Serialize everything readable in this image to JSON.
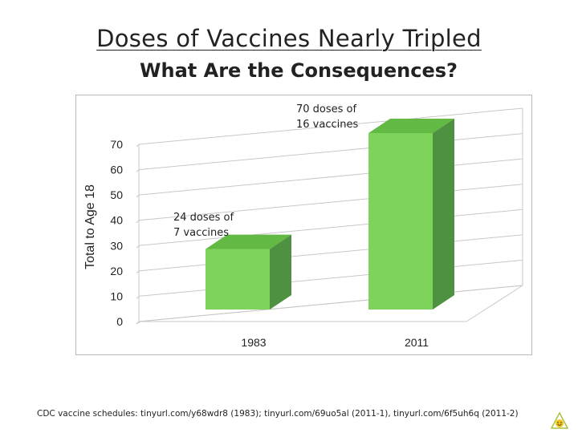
{
  "slide": {
    "title": "Doses of Vaccines Nearly Tripled",
    "subtitle": "What Are the Consequences?",
    "footer": "CDC vaccine schedules: tinyurl.com/y68wdr8 (1983); tinyurl.com/69uo5al (2011-1), tinyurl.com/6f5uh6q (2011-2)",
    "corner_icon": "smiley-logo-icon"
  },
  "chart_data": {
    "type": "bar",
    "style": "3d-column",
    "categories": [
      "1983",
      "2011"
    ],
    "values": [
      24,
      70
    ],
    "ylabel": "Total to Age 18",
    "xlabel": "",
    "ylim": [
      0,
      70
    ],
    "yticks": [
      0,
      10,
      20,
      30,
      40,
      50,
      60,
      70
    ],
    "grid": true,
    "annotations": [
      {
        "lines": [
          "24 doses of",
          "7 vaccines"
        ],
        "category": "1983"
      },
      {
        "lines": [
          "70 doses of",
          "16 vaccines"
        ],
        "category": "2011"
      }
    ],
    "colors": {
      "bar_front": "#7ed35a",
      "bar_top": "#62b944",
      "bar_side": "#4e9140",
      "grid": "#c8c8c8"
    }
  }
}
